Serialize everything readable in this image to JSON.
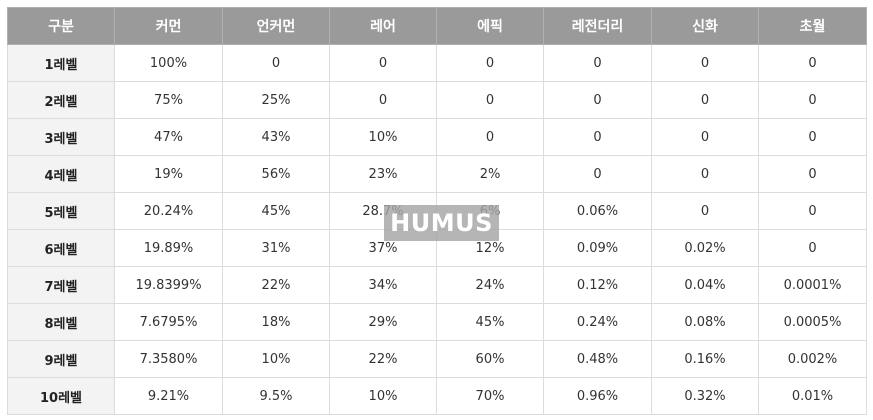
{
  "table": {
    "headers": [
      "구분",
      "커먼",
      "언커먼",
      "레어",
      "에픽",
      "레전더리",
      "신화",
      "초월"
    ],
    "rows": [
      [
        "1레벨",
        "100%",
        "0",
        "0",
        "0",
        "0",
        "0",
        "0"
      ],
      [
        "2레벨",
        "75%",
        "25%",
        "0",
        "0",
        "0",
        "0",
        "0"
      ],
      [
        "3레벨",
        "47%",
        "43%",
        "10%",
        "0",
        "0",
        "0",
        "0"
      ],
      [
        "4레벨",
        "19%",
        "56%",
        "23%",
        "2%",
        "0",
        "0",
        "0"
      ],
      [
        "5레벨",
        "20.24%",
        "45%",
        "28.7%",
        "6%",
        "0.06%",
        "0",
        "0"
      ],
      [
        "6레벨",
        "19.89%",
        "31%",
        "37%",
        "12%",
        "0.09%",
        "0.02%",
        "0"
      ],
      [
        "7레벨",
        "19.8399%",
        "22%",
        "34%",
        "24%",
        "0.12%",
        "0.04%",
        "0.0001%"
      ],
      [
        "8레벨",
        "7.6795%",
        "18%",
        "29%",
        "45%",
        "0.24%",
        "0.08%",
        "0.0005%"
      ],
      [
        "9레벨",
        "7.3580%",
        "10%",
        "22%",
        "60%",
        "0.48%",
        "0.16%",
        "0.002%"
      ],
      [
        "10레벨",
        "9.21%",
        "9.5%",
        "10%",
        "70%",
        "0.96%",
        "0.32%",
        "0.01%"
      ]
    ]
  },
  "watermark": {
    "text": "HUMUS"
  },
  "colors": {
    "header_bg": "#9a9a9a",
    "header_text": "#ffffff",
    "rowhead_bg": "#f3f3f3",
    "border": "#dcdcdc"
  }
}
